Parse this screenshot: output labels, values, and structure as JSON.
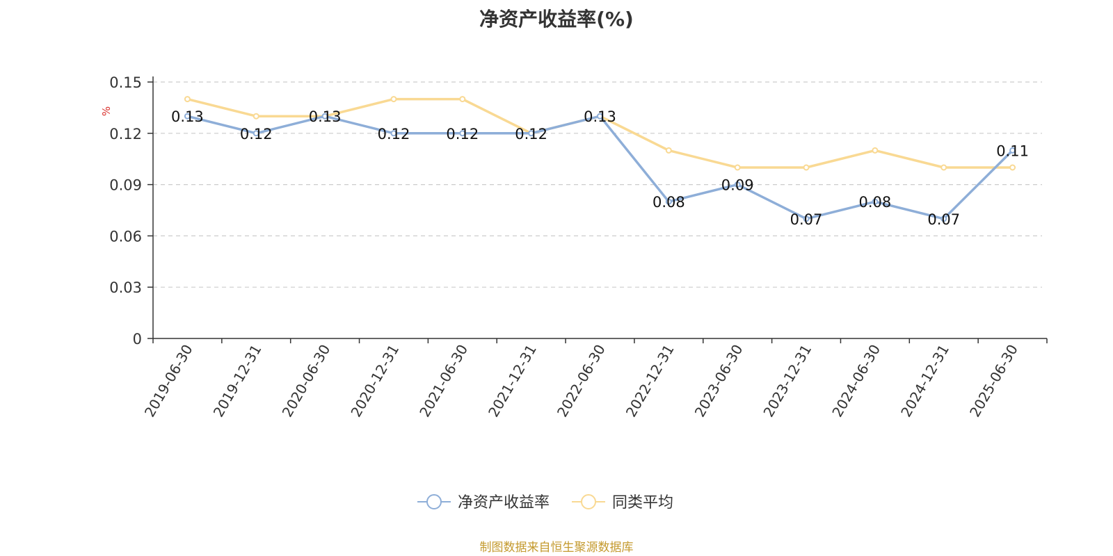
{
  "chart_data": {
    "type": "line",
    "title": "净资产收益率(%)",
    "ylabel": "%",
    "xlabel": "",
    "categories": [
      "2019-06-30",
      "2019-12-31",
      "2020-06-30",
      "2020-12-31",
      "2021-06-30",
      "2021-12-31",
      "2022-06-30",
      "2022-12-31",
      "2023-06-30",
      "2023-12-31",
      "2024-06-30",
      "2024-12-31",
      "2025-06-30"
    ],
    "ylim": [
      0,
      0.15
    ],
    "yticks": [
      "0",
      "0.03",
      "0.06",
      "0.09",
      "0.12",
      "0.15"
    ],
    "grid": true,
    "legend": "bottom-center",
    "series": [
      {
        "name": "净资产收益率",
        "color": "#8eaed8",
        "values": [
          0.13,
          0.12,
          0.13,
          0.12,
          0.12,
          0.12,
          0.13,
          0.08,
          0.09,
          0.07,
          0.08,
          0.07,
          0.11
        ],
        "labels": [
          "0.13",
          "0.12",
          "0.13",
          "0.12",
          "0.12",
          "0.12",
          "0.13",
          "0.08",
          "0.09",
          "0.07",
          "0.08",
          "0.07",
          "0.11"
        ]
      },
      {
        "name": "同类平均",
        "color": "#f9d993",
        "values": [
          0.14,
          0.13,
          0.13,
          0.14,
          0.14,
          0.12,
          0.13,
          0.11,
          0.1,
          0.1,
          0.11,
          0.1,
          0.1
        ]
      }
    ]
  },
  "source": "制图数据来自恒生聚源数据库"
}
